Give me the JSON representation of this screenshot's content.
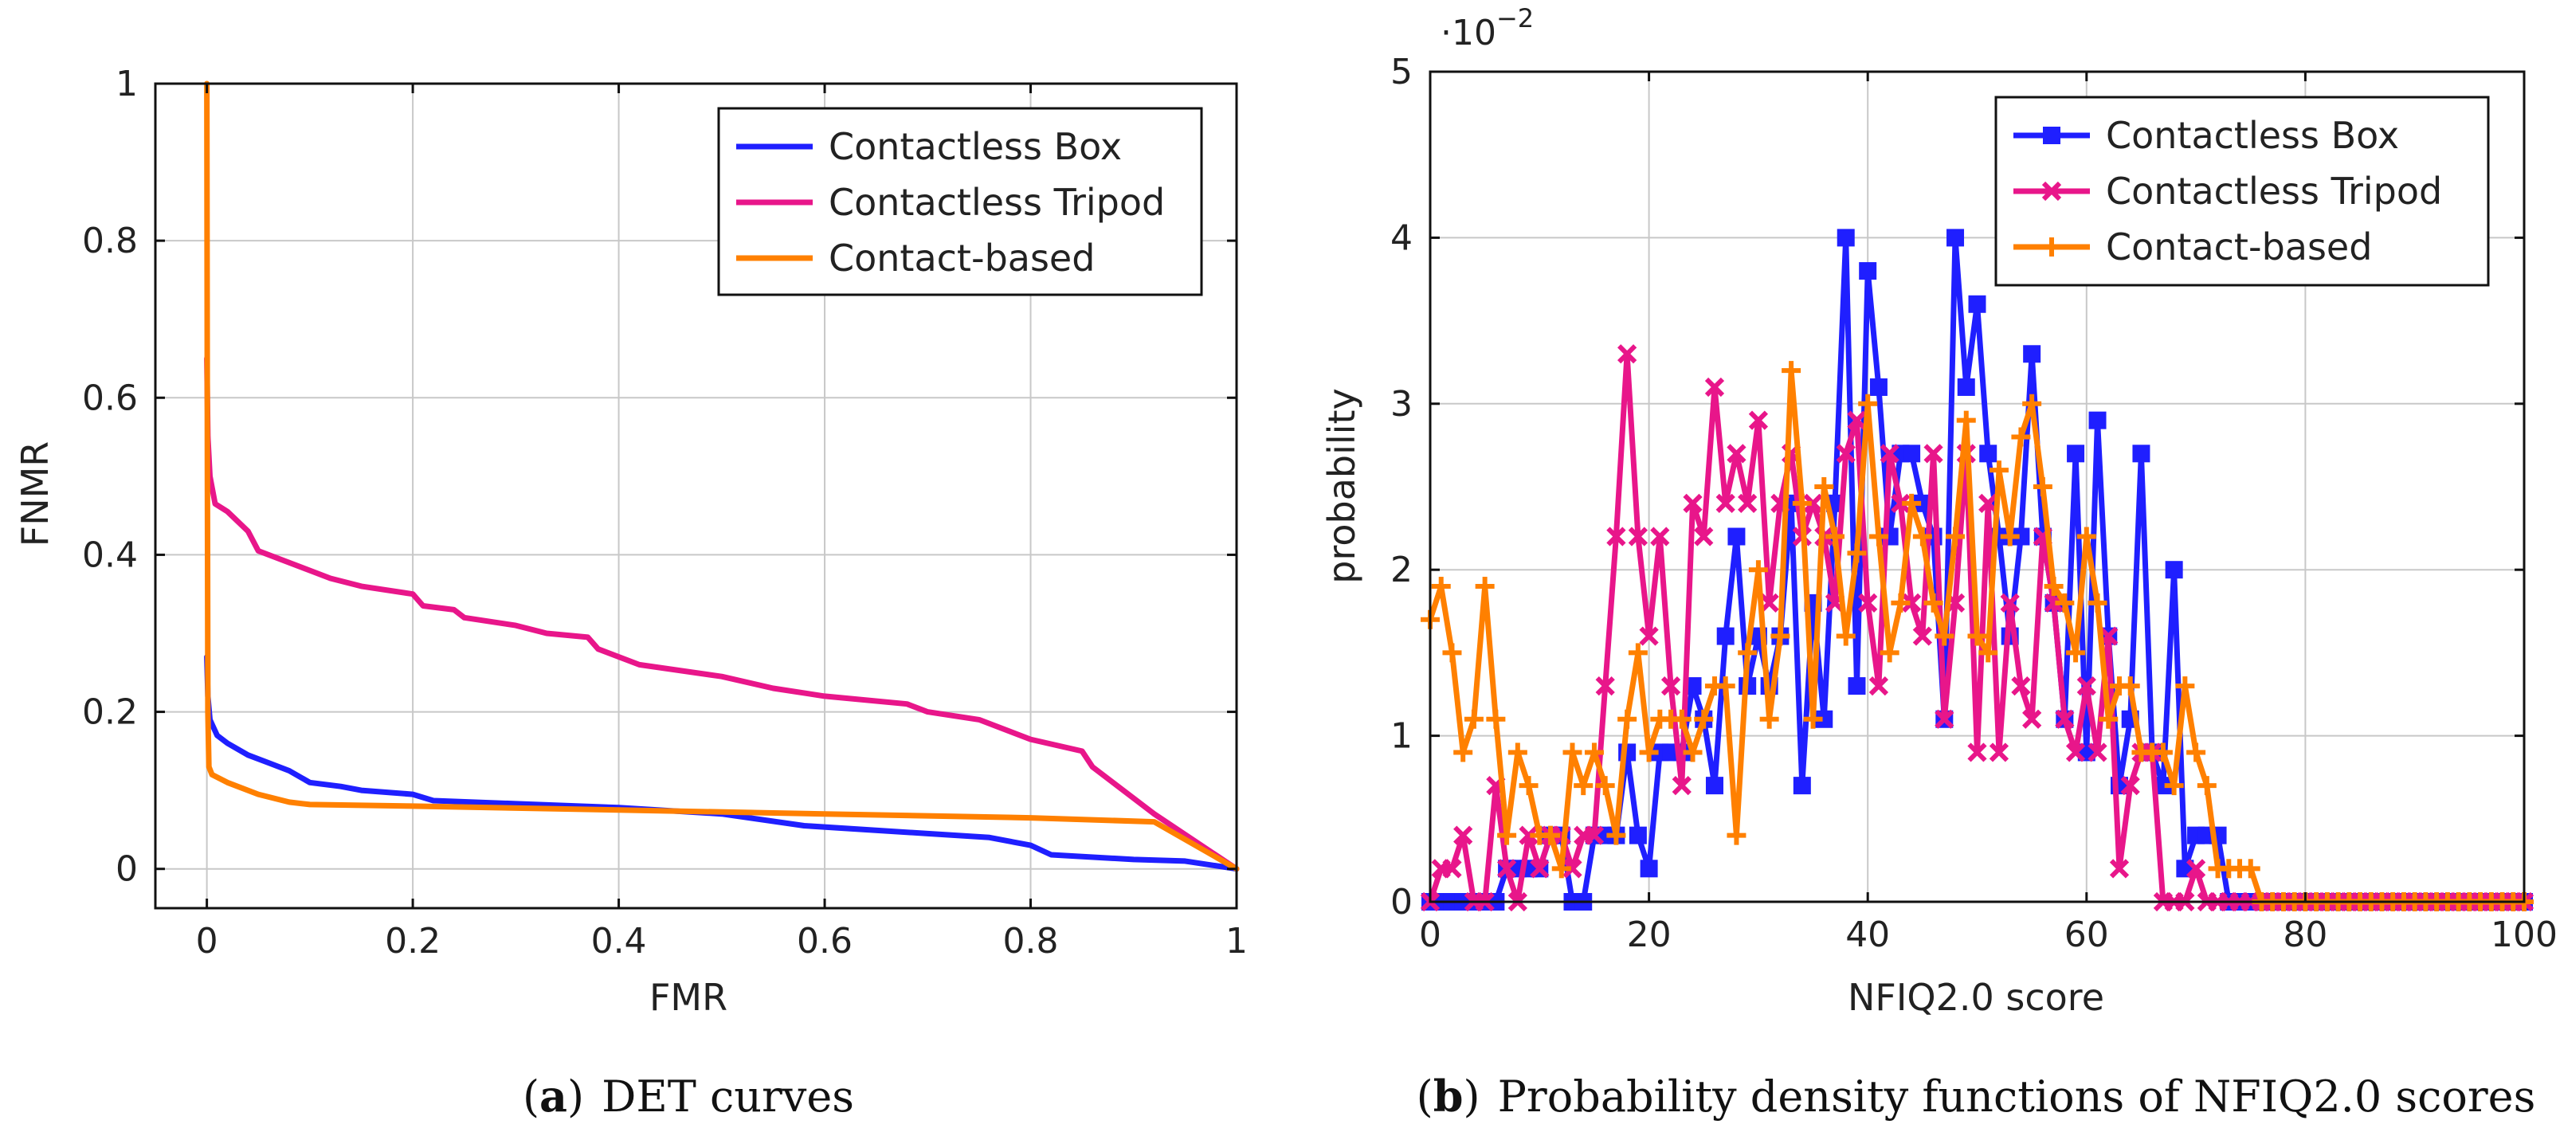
{
  "chart_data": [
    {
      "id": "det",
      "type": "line",
      "caption_letter": "a",
      "caption_text": "DET curves",
      "xlabel": "FMR",
      "ylabel": "FNMR",
      "xlim": [
        -0.05,
        1
      ],
      "ylim": [
        -0.05,
        1
      ],
      "xticks": [
        0,
        0.2,
        0.4,
        0.6,
        0.8,
        1
      ],
      "xtick_labels": [
        "0",
        "0.2",
        "0.4",
        "0.6",
        "0.8",
        "1"
      ],
      "yticks": [
        0,
        0.2,
        0.4,
        0.6,
        0.8,
        1
      ],
      "ytick_labels": [
        "0",
        "0.2",
        "0.4",
        "0.6",
        "0.8",
        "1"
      ],
      "grid": true,
      "legend_position": "top-right",
      "series": [
        {
          "name": "Contactless Box",
          "color": "#1f1fff",
          "marker": "none",
          "points": [
            [
              0,
              0.27
            ],
            [
              0.001,
              0.22
            ],
            [
              0.003,
              0.19
            ],
            [
              0.01,
              0.17
            ],
            [
              0.02,
              0.16
            ],
            [
              0.04,
              0.145
            ],
            [
              0.06,
              0.135
            ],
            [
              0.08,
              0.125
            ],
            [
              0.1,
              0.11
            ],
            [
              0.13,
              0.105
            ],
            [
              0.15,
              0.1
            ],
            [
              0.2,
              0.095
            ],
            [
              0.22,
              0.087
            ],
            [
              0.3,
              0.083
            ],
            [
              0.4,
              0.078
            ],
            [
              0.5,
              0.07
            ],
            [
              0.58,
              0.055
            ],
            [
              0.7,
              0.045
            ],
            [
              0.76,
              0.04
            ],
            [
              0.8,
              0.03
            ],
            [
              0.82,
              0.018
            ],
            [
              0.9,
              0.012
            ],
            [
              0.95,
              0.01
            ],
            [
              1,
              0
            ]
          ]
        },
        {
          "name": "Contactless Tripod",
          "color": "#e8168a",
          "marker": "none",
          "points": [
            [
              0,
              0.65
            ],
            [
              0.001,
              0.55
            ],
            [
              0.003,
              0.5
            ],
            [
              0.008,
              0.465
            ],
            [
              0.02,
              0.455
            ],
            [
              0.04,
              0.43
            ],
            [
              0.05,
              0.405
            ],
            [
              0.1,
              0.38
            ],
            [
              0.12,
              0.37
            ],
            [
              0.15,
              0.36
            ],
            [
              0.2,
              0.35
            ],
            [
              0.21,
              0.335
            ],
            [
              0.24,
              0.33
            ],
            [
              0.25,
              0.32
            ],
            [
              0.3,
              0.31
            ],
            [
              0.33,
              0.3
            ],
            [
              0.37,
              0.295
            ],
            [
              0.38,
              0.28
            ],
            [
              0.42,
              0.26
            ],
            [
              0.5,
              0.245
            ],
            [
              0.55,
              0.23
            ],
            [
              0.6,
              0.22
            ],
            [
              0.68,
              0.21
            ],
            [
              0.7,
              0.2
            ],
            [
              0.75,
              0.19
            ],
            [
              0.8,
              0.165
            ],
            [
              0.85,
              0.15
            ],
            [
              0.86,
              0.13
            ],
            [
              0.92,
              0.07
            ],
            [
              1,
              0
            ]
          ]
        },
        {
          "name": "Contact-based",
          "color": "#ff8000",
          "marker": "none",
          "points": [
            [
              0,
              1
            ],
            [
              0.0005,
              0.5
            ],
            [
              0.001,
              0.2
            ],
            [
              0.002,
              0.13
            ],
            [
              0.005,
              0.12
            ],
            [
              0.02,
              0.11
            ],
            [
              0.05,
              0.095
            ],
            [
              0.08,
              0.085
            ],
            [
              0.1,
              0.082
            ],
            [
              0.2,
              0.08
            ],
            [
              0.4,
              0.075
            ],
            [
              0.6,
              0.07
            ],
            [
              0.8,
              0.065
            ],
            [
              0.92,
              0.06
            ],
            [
              1,
              0
            ]
          ]
        }
      ]
    },
    {
      "id": "pdf",
      "type": "line",
      "caption_letter": "b",
      "caption_text": "Probability density functions of NFIQ2.0 scores",
      "xlabel": "NFIQ2.0 score",
      "ylabel": "probability",
      "exponent_label": "·10",
      "exponent_power": "−2",
      "xlim": [
        0,
        100
      ],
      "ylim": [
        0,
        5
      ],
      "xticks": [
        0,
        20,
        40,
        60,
        80,
        100
      ],
      "xtick_labels": [
        "0",
        "20",
        "40",
        "60",
        "80",
        "100"
      ],
      "yticks": [
        0,
        1,
        2,
        3,
        4,
        5
      ],
      "ytick_labels": [
        "0",
        "1",
        "2",
        "3",
        "4",
        "5"
      ],
      "grid": true,
      "legend_position": "top-right",
      "series": [
        {
          "name": "Contactless Box",
          "color": "#1f1fff",
          "marker": "square",
          "x": [
            0,
            1,
            2,
            3,
            4,
            5,
            6,
            7,
            8,
            9,
            10,
            11,
            12,
            13,
            14,
            15,
            16,
            17,
            18,
            19,
            20,
            21,
            22,
            23,
            24,
            25,
            26,
            27,
            28,
            29,
            30,
            31,
            32,
            33,
            34,
            35,
            36,
            37,
            38,
            39,
            40,
            41,
            42,
            43,
            44,
            45,
            46,
            47,
            48,
            49,
            50,
            51,
            52,
            53,
            54,
            55,
            56,
            57,
            58,
            59,
            60,
            61,
            62,
            63,
            64,
            65,
            66,
            67,
            68,
            69,
            70,
            71,
            72,
            73,
            74,
            75,
            76,
            77,
            78,
            79,
            80,
            81,
            82,
            83,
            84,
            85,
            86,
            87,
            88,
            89,
            90,
            91,
            92,
            93,
            94,
            95,
            96,
            97,
            98,
            99,
            100
          ],
          "values": [
            0,
            0,
            0,
            0,
            0,
            0,
            0,
            0.2,
            0.2,
            0.2,
            0.2,
            0.4,
            0.4,
            0,
            0,
            0.4,
            0.4,
            0.4,
            0.9,
            0.4,
            0.2,
            0.9,
            0.9,
            0.9,
            1.3,
            1.1,
            0.7,
            1.6,
            2.2,
            1.3,
            1.6,
            1.3,
            1.6,
            2.4,
            0.7,
            1.8,
            1.1,
            2.4,
            4,
            1.3,
            3.8,
            3.1,
            2.2,
            2.7,
            2.7,
            2.4,
            2.2,
            1.1,
            4,
            3.1,
            3.6,
            2.7,
            2.2,
            1.6,
            2.2,
            3.3,
            2.2,
            1.8,
            1.1,
            2.7,
            0.9,
            2.9,
            1.6,
            0.7,
            1.1,
            2.7,
            0.9,
            0.7,
            2,
            0.2,
            0.4,
            0.4,
            0.4,
            0,
            0,
            0,
            0,
            0,
            0,
            0,
            0,
            0,
            0,
            0,
            0,
            0,
            0,
            0,
            0,
            0,
            0,
            0,
            0,
            0,
            0,
            0,
            0,
            0,
            0,
            0,
            0
          ]
        },
        {
          "name": "Contactless Tripod",
          "color": "#e8168a",
          "marker": "cross",
          "x": [
            0,
            1,
            2,
            3,
            4,
            5,
            6,
            7,
            8,
            9,
            10,
            11,
            12,
            13,
            14,
            15,
            16,
            17,
            18,
            19,
            20,
            21,
            22,
            23,
            24,
            25,
            26,
            27,
            28,
            29,
            30,
            31,
            32,
            33,
            34,
            35,
            36,
            37,
            38,
            39,
            40,
            41,
            42,
            43,
            44,
            45,
            46,
            47,
            48,
            49,
            50,
            51,
            52,
            53,
            54,
            55,
            56,
            57,
            58,
            59,
            60,
            61,
            62,
            63,
            64,
            65,
            66,
            67,
            68,
            69,
            70,
            71,
            72,
            73,
            74,
            75,
            76,
            77,
            78,
            79,
            80,
            81,
            82,
            83,
            84,
            85,
            86,
            87,
            88,
            89,
            90,
            91,
            92,
            93,
            94,
            95,
            96,
            97,
            98,
            99,
            100
          ],
          "values": [
            0,
            0.2,
            0.2,
            0.4,
            0,
            0,
            0.7,
            0.2,
            0,
            0.4,
            0.2,
            0.4,
            0.4,
            0.2,
            0.4,
            0.4,
            1.3,
            2.2,
            3.3,
            2.2,
            1.6,
            2.2,
            1.3,
            0.7,
            2.4,
            2.2,
            3.1,
            2.4,
            2.7,
            2.4,
            2.9,
            1.8,
            2.4,
            2.7,
            2.2,
            2.4,
            2.2,
            1.8,
            2.7,
            2.9,
            1.8,
            1.3,
            2.7,
            2.4,
            1.8,
            1.6,
            2.7,
            1.1,
            1.8,
            2.7,
            0.9,
            2.4,
            0.9,
            1.8,
            1.3,
            1.1,
            2.2,
            1.8,
            1.1,
            0.9,
            1.3,
            0.9,
            1.6,
            0.2,
            0.7,
            0.9,
            0.9,
            0,
            0,
            0,
            0.2,
            0,
            0,
            0,
            0,
            0,
            0,
            0,
            0,
            0,
            0,
            0,
            0,
            0,
            0,
            0,
            0,
            0,
            0,
            0,
            0,
            0,
            0,
            0,
            0,
            0,
            0,
            0,
            0,
            0,
            0
          ]
        },
        {
          "name": "Contact-based",
          "color": "#ff8000",
          "marker": "plus",
          "x": [
            0,
            1,
            2,
            3,
            4,
            5,
            6,
            7,
            8,
            9,
            10,
            11,
            12,
            13,
            14,
            15,
            16,
            17,
            18,
            19,
            20,
            21,
            22,
            23,
            24,
            25,
            26,
            27,
            28,
            29,
            30,
            31,
            32,
            33,
            34,
            35,
            36,
            37,
            38,
            39,
            40,
            41,
            42,
            43,
            44,
            45,
            46,
            47,
            48,
            49,
            50,
            51,
            52,
            53,
            54,
            55,
            56,
            57,
            58,
            59,
            60,
            61,
            62,
            63,
            64,
            65,
            66,
            67,
            68,
            69,
            70,
            71,
            72,
            73,
            74,
            75,
            76,
            77,
            78,
            79,
            80,
            81,
            82,
            83,
            84,
            85,
            86,
            87,
            88,
            89,
            90,
            91,
            92,
            93,
            94,
            95,
            96,
            97,
            98,
            99,
            100
          ],
          "values": [
            1.7,
            1.9,
            1.5,
            0.9,
            1.1,
            1.9,
            1.1,
            0.4,
            0.9,
            0.7,
            0.4,
            0.4,
            0.2,
            0.9,
            0.7,
            0.9,
            0.7,
            0.4,
            1.1,
            1.5,
            0.9,
            1.1,
            1.1,
            1.1,
            0.9,
            1.1,
            1.3,
            1.3,
            0.4,
            1.5,
            2,
            1.1,
            1.6,
            3.2,
            2.4,
            1.1,
            2.5,
            2.2,
            1.6,
            2.1,
            3,
            2.2,
            1.5,
            1.8,
            2.4,
            2.2,
            1.8,
            1.6,
            2.2,
            2.9,
            1.6,
            1.5,
            2.6,
            2.2,
            2.8,
            3,
            2.5,
            1.9,
            1.8,
            1.5,
            2.2,
            1.8,
            1.1,
            1.3,
            1.3,
            0.9,
            0.9,
            0.9,
            0.7,
            1.3,
            0.9,
            0.7,
            0.2,
            0.2,
            0.2,
            0.2,
            0,
            0,
            0,
            0,
            0,
            0,
            0,
            0,
            0,
            0,
            0,
            0,
            0,
            0,
            0,
            0,
            0,
            0,
            0,
            0,
            0,
            0,
            0,
            0,
            0
          ]
        }
      ]
    }
  ]
}
